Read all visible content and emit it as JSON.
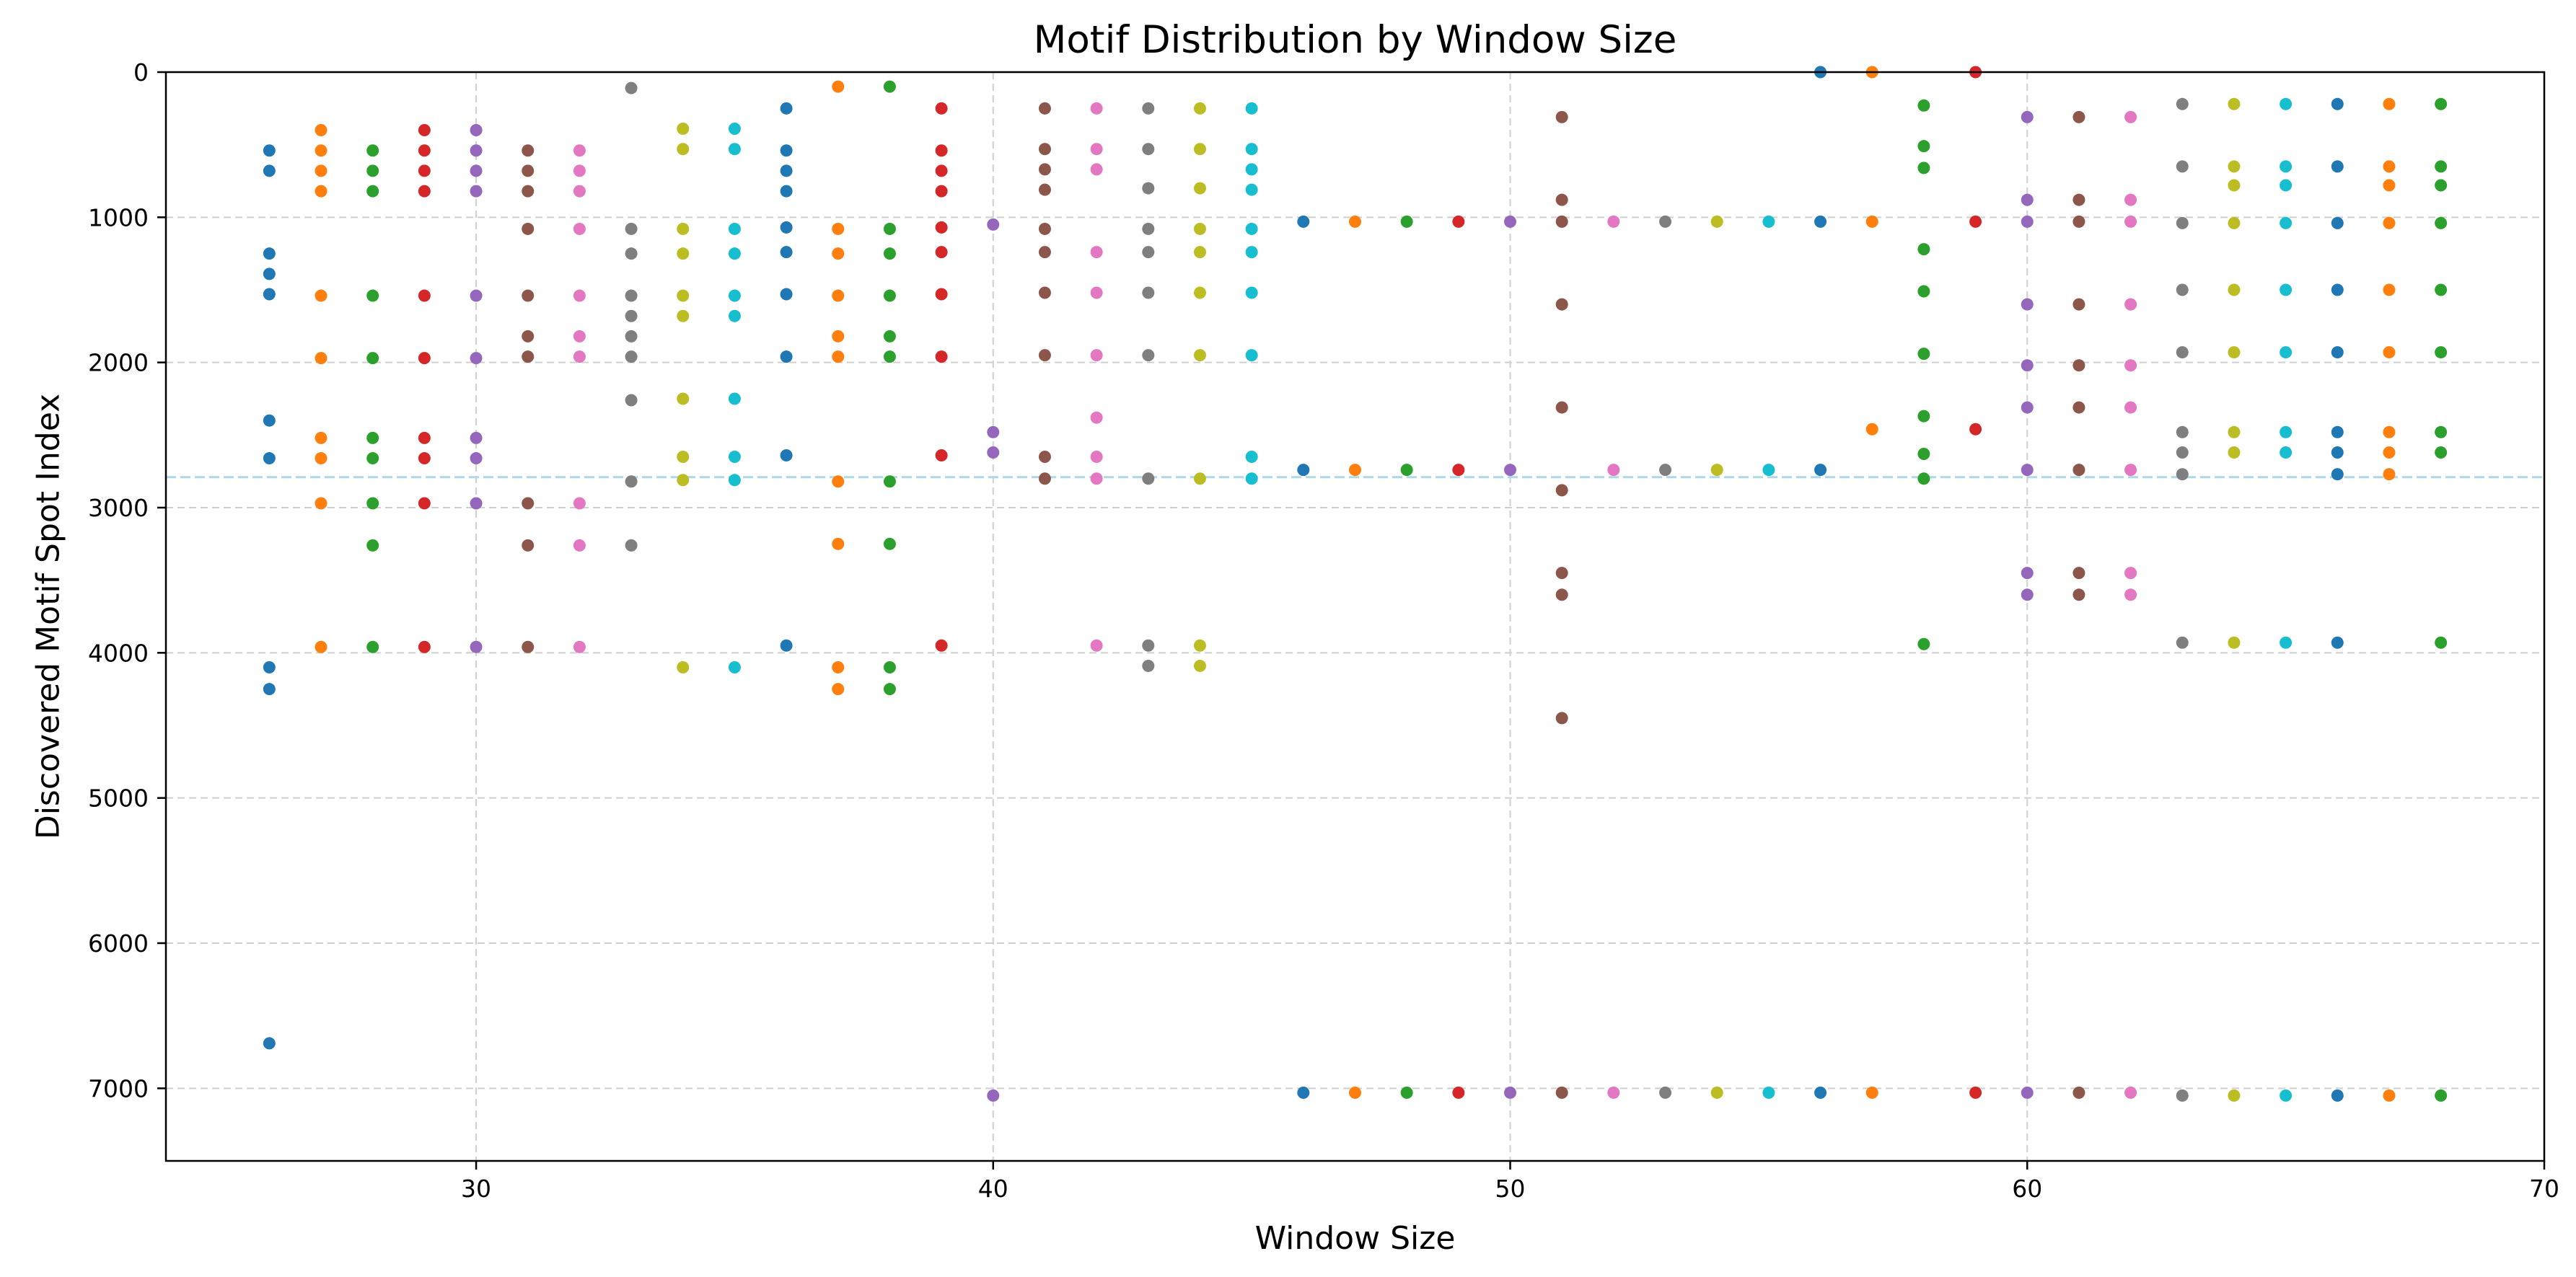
{
  "chart_data": {
    "type": "scatter",
    "title": "Motif Distribution by Window Size",
    "xlabel": "Window Size",
    "ylabel": "Discovered Motif Spot Index",
    "xlim": [
      24,
      70
    ],
    "ylim": [
      7500,
      0
    ],
    "y_inverted": true,
    "xticks": [
      30,
      40,
      50,
      60,
      70
    ],
    "yticks": [
      0,
      1000,
      2000,
      3000,
      4000,
      5000,
      6000,
      7000
    ],
    "grid": true,
    "reference_line": {
      "y": 2790,
      "color": "#add8e6",
      "style": "dashed"
    },
    "palette": [
      "#1f77b4",
      "#ff7f0e",
      "#2ca02c",
      "#d62728",
      "#9467bd",
      "#8c564b",
      "#e377c2",
      "#7f7f7f",
      "#bcbd22",
      "#17becf"
    ],
    "series": [
      {
        "x": 26,
        "y": [
          540,
          680,
          1250,
          1390,
          1530,
          2400,
          2660,
          4100,
          4250,
          6690
        ]
      },
      {
        "x": 27,
        "y": [
          400,
          540,
          680,
          820,
          1540,
          1970,
          2520,
          2660,
          2970,
          3960
        ]
      },
      {
        "x": 28,
        "y": [
          540,
          680,
          820,
          1540,
          1970,
          2520,
          2660,
          2970,
          3260,
          3960
        ]
      },
      {
        "x": 29,
        "y": [
          400,
          540,
          680,
          820,
          1540,
          1970,
          2520,
          2660,
          2970,
          3960
        ]
      },
      {
        "x": 30,
        "y": [
          400,
          540,
          680,
          820,
          1540,
          1970,
          2520,
          2660,
          2970,
          3960
        ]
      },
      {
        "x": 31,
        "y": [
          540,
          680,
          820,
          1080,
          1540,
          1820,
          1960,
          2970,
          3260,
          3960
        ]
      },
      {
        "x": 32,
        "y": [
          540,
          680,
          820,
          1080,
          1540,
          1820,
          1960,
          2970,
          3260,
          3960
        ]
      },
      {
        "x": 33,
        "y": [
          110,
          1080,
          1250,
          1540,
          1680,
          1820,
          1960,
          2260,
          2820,
          3260
        ]
      },
      {
        "x": 34,
        "y": [
          390,
          530,
          1080,
          1250,
          1540,
          1680,
          2250,
          2650,
          2810,
          4100
        ]
      },
      {
        "x": 35,
        "y": [
          390,
          530,
          1080,
          1250,
          1540,
          1680,
          2250,
          2650,
          2810,
          4100
        ]
      },
      {
        "x": 36,
        "y": [
          250,
          540,
          680,
          820,
          1070,
          1240,
          1530,
          1960,
          2640,
          3950
        ]
      },
      {
        "x": 37,
        "y": [
          100,
          1080,
          1250,
          1540,
          1820,
          1960,
          2820,
          3250,
          4100,
          4250
        ]
      },
      {
        "x": 38,
        "y": [
          100,
          1080,
          1250,
          1540,
          1820,
          1960,
          2820,
          3250,
          4100,
          4250
        ]
      },
      {
        "x": 39,
        "y": [
          250,
          540,
          680,
          820,
          1070,
          1240,
          1530,
          1960,
          2640,
          3950
        ]
      },
      {
        "x": 40,
        "y": [
          1050,
          2480,
          2620,
          7050
        ]
      },
      {
        "x": 41,
        "y": [
          250,
          530,
          670,
          810,
          1080,
          1240,
          1520,
          1950,
          2650,
          2800
        ]
      },
      {
        "x": 42,
        "y": [
          250,
          530,
          670,
          1240,
          1520,
          1950,
          2380,
          2650,
          2800,
          3950
        ]
      },
      {
        "x": 43,
        "y": [
          250,
          530,
          800,
          1080,
          1240,
          1520,
          1950,
          2800,
          3950,
          4090
        ]
      },
      {
        "x": 44,
        "y": [
          250,
          530,
          800,
          1080,
          1240,
          1520,
          1950,
          2800,
          3950,
          4090
        ]
      },
      {
        "x": 45,
        "y": [
          250,
          530,
          670,
          810,
          1080,
          1240,
          1520,
          1950,
          2650,
          2800
        ]
      },
      {
        "x": 46,
        "y": [
          1030,
          2740,
          7030
        ]
      },
      {
        "x": 47,
        "y": [
          1030,
          2740,
          7030
        ]
      },
      {
        "x": 48,
        "y": [
          1030,
          2740,
          7030
        ]
      },
      {
        "x": 49,
        "y": [
          1030,
          2740,
          7030
        ]
      },
      {
        "x": 50,
        "y": [
          1030,
          2740,
          7030
        ]
      },
      {
        "x": 51,
        "y": [
          310,
          880,
          1030,
          1600,
          2310,
          2880,
          3450,
          3600,
          4450,
          7030
        ]
      },
      {
        "x": 52,
        "y": [
          1030,
          2740,
          7030
        ]
      },
      {
        "x": 53,
        "y": [
          1030,
          2740,
          7030
        ]
      },
      {
        "x": 54,
        "y": [
          1030,
          2740,
          7030
        ]
      },
      {
        "x": 55,
        "y": [
          1030,
          2740,
          7030
        ]
      },
      {
        "x": 56,
        "y": [
          0,
          1030,
          2740,
          7030
        ]
      },
      {
        "x": 57,
        "y": [
          0,
          1030,
          2460,
          7030
        ]
      },
      {
        "x": 58,
        "y": [
          230,
          510,
          660,
          1220,
          1510,
          1940,
          2370,
          2630,
          2800,
          3940
        ]
      },
      {
        "x": 59,
        "y": [
          0,
          1030,
          2460,
          7030
        ]
      },
      {
        "x": 60,
        "y": [
          310,
          880,
          1030,
          1600,
          2020,
          2310,
          2740,
          3450,
          3600,
          7030
        ]
      },
      {
        "x": 61,
        "y": [
          310,
          880,
          1030,
          1600,
          2020,
          2310,
          2740,
          3450,
          3600,
          7030
        ]
      },
      {
        "x": 62,
        "y": [
          310,
          880,
          1030,
          1600,
          2020,
          2310,
          2740,
          3450,
          3600,
          7030
        ]
      },
      {
        "x": 63,
        "y": [
          220,
          650,
          1040,
          1500,
          1930,
          2480,
          2620,
          2770,
          3930,
          7050
        ]
      },
      {
        "x": 64,
        "y": [
          220,
          650,
          780,
          1040,
          1500,
          1930,
          2480,
          2620,
          3930,
          7050
        ]
      },
      {
        "x": 65,
        "y": [
          220,
          650,
          780,
          1040,
          1500,
          1930,
          2480,
          2620,
          3930,
          7050
        ]
      },
      {
        "x": 66,
        "y": [
          220,
          650,
          1040,
          1500,
          1930,
          2480,
          2620,
          2770,
          3930,
          7050
        ]
      },
      {
        "x": 67,
        "y": [
          220,
          650,
          780,
          1040,
          1500,
          1930,
          2480,
          2620,
          2770,
          7050
        ]
      },
      {
        "x": 68,
        "y": [
          220,
          650,
          780,
          1040,
          1500,
          1930,
          2480,
          2620,
          3930,
          7050
        ]
      }
    ]
  }
}
